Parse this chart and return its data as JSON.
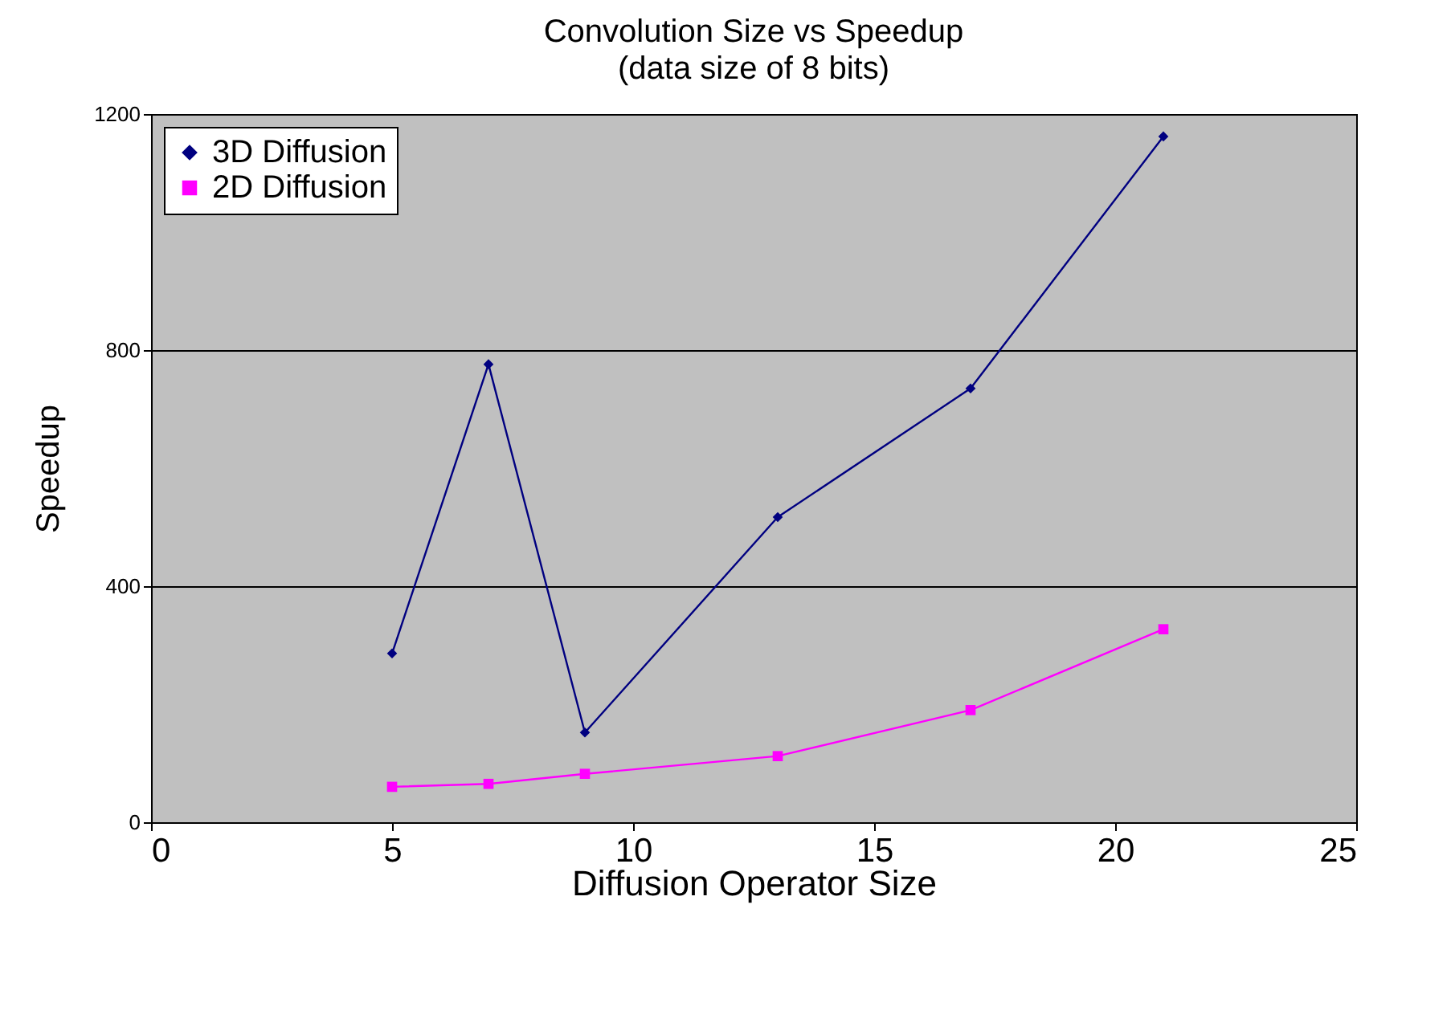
{
  "chart_data": {
    "type": "line",
    "title": "Convolution Size vs Speedup",
    "subtitle": "(data size of 8 bits)",
    "xlabel": "Diffusion Operator Size",
    "ylabel": "Speedup",
    "x": [
      5,
      7,
      9,
      13,
      17,
      21
    ],
    "series": [
      {
        "name": "3D Diffusion",
        "color": "#000080",
        "marker": "diamond",
        "values": [
          286,
          776,
          152,
          517,
          735,
          1162
        ]
      },
      {
        "name": "2D Diffusion",
        "color": "#ff00ff",
        "marker": "square",
        "values": [
          60,
          65,
          82,
          112,
          190,
          327
        ]
      }
    ],
    "xlim": [
      0,
      25
    ],
    "xticks": [
      0,
      5,
      10,
      15,
      20,
      25
    ],
    "ylim": [
      0,
      1200
    ],
    "yticks": [
      0,
      400,
      800,
      1200
    ],
    "grid": "y",
    "legend": "top left",
    "line_style": "solid"
  }
}
